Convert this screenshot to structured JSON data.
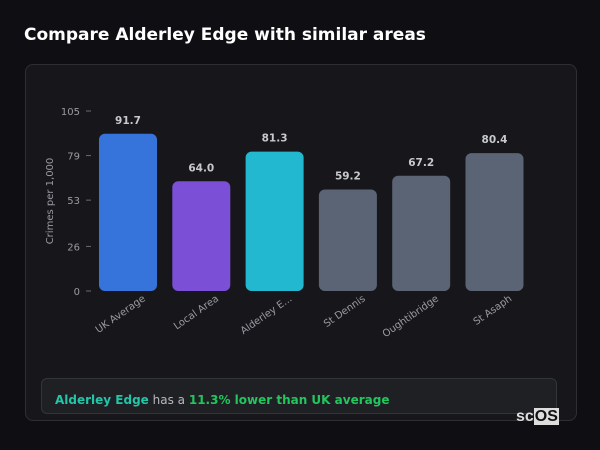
{
  "title": "Compare Alderley Edge with similar areas",
  "chart_data": {
    "type": "bar",
    "ylabel": "Crimes per 1,000",
    "ylim": [
      0,
      105
    ],
    "yticks": [
      0,
      26,
      53,
      79,
      105
    ],
    "categories": [
      "UK Average",
      "Local Area",
      "Alderley E...",
      "St Dennis",
      "Oughtibridge",
      "St Asaph"
    ],
    "values": [
      91.7,
      64.0,
      81.3,
      59.2,
      67.2,
      80.4
    ],
    "value_labels": [
      "91.7",
      "64.0",
      "81.3",
      "59.2",
      "67.2",
      "80.4"
    ],
    "colors": [
      "#3674db",
      "#7b4fd6",
      "#22b8cf",
      "#5a6474",
      "#5a6474",
      "#5a6474"
    ]
  },
  "summary": {
    "area": "Alderley Edge",
    "middle": " has a ",
    "comparison": "11.3% lower than UK average"
  },
  "logo": {
    "left": "sc",
    "right": "OS"
  }
}
